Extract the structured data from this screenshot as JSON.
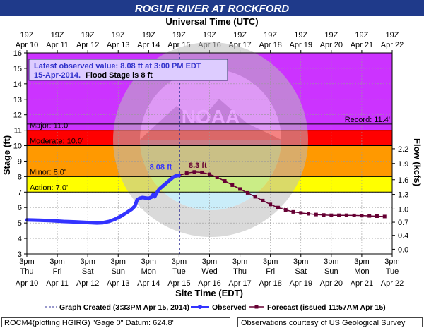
{
  "header": {
    "title": "ROGUE RIVER AT ROCKFORD",
    "utc_label": "Universal Time (UTC)",
    "title_bg": "#1f3a8a"
  },
  "annotation": {
    "line1": "Latest observed value: 8.08 ft at 3:00 PM EDT",
    "line2_date": "15-Apr-2014.",
    "line2_flood": "Flood Stage is 8 ft"
  },
  "chart_data": {
    "type": "line",
    "ylabel": "Stage (ft)",
    "y2label": "Flow (kcfs)",
    "xlabel": "Site Time (EDT)",
    "ylim": [
      3,
      16
    ],
    "xlim_days": [
      0,
      12
    ],
    "y_ticks": [
      3,
      4,
      5,
      6,
      7,
      8,
      9,
      10,
      11,
      12,
      13,
      14,
      15,
      16
    ],
    "y2_ticks": [
      {
        "stage": 3.3,
        "label": "0.0"
      },
      {
        "stage": 4.2,
        "label": "0.4"
      },
      {
        "stage": 5.05,
        "label": "0.7"
      },
      {
        "stage": 5.9,
        "label": "1.0"
      },
      {
        "stage": 6.85,
        "label": "1.3"
      },
      {
        "stage": 7.8,
        "label": "1.6"
      },
      {
        "stage": 8.85,
        "label": "1.9"
      },
      {
        "stage": 9.8,
        "label": "2.2"
      }
    ],
    "top_ticks": [
      {
        "hour": "19Z",
        "date": "Apr 10"
      },
      {
        "hour": "19Z",
        "date": "Apr 11"
      },
      {
        "hour": "19Z",
        "date": "Apr 12"
      },
      {
        "hour": "19Z",
        "date": "Apr 13"
      },
      {
        "hour": "19Z",
        "date": "Apr 14"
      },
      {
        "hour": "19Z",
        "date": "Apr 15"
      },
      {
        "hour": "19Z",
        "date": "Apr 16"
      },
      {
        "hour": "19Z",
        "date": "Apr 17"
      },
      {
        "hour": "19Z",
        "date": "Apr 18"
      },
      {
        "hour": "19Z",
        "date": "Apr 19"
      },
      {
        "hour": "19Z",
        "date": "Apr 20"
      },
      {
        "hour": "19Z",
        "date": "Apr 21"
      },
      {
        "hour": "19Z",
        "date": "Apr 22"
      }
    ],
    "bottom_ticks": [
      {
        "time": "3pm",
        "day": "Thu",
        "date": "Apr 10"
      },
      {
        "time": "3pm",
        "day": "Fri",
        "date": "Apr 11"
      },
      {
        "time": "3pm",
        "day": "Sat",
        "date": "Apr 12"
      },
      {
        "time": "3pm",
        "day": "Sun",
        "date": "Apr 13"
      },
      {
        "time": "3pm",
        "day": "Mon",
        "date": "Apr 14"
      },
      {
        "time": "3pm",
        "day": "Tue",
        "date": "Apr 15"
      },
      {
        "time": "3pm",
        "day": "Wed",
        "date": "Apr 16"
      },
      {
        "time": "3pm",
        "day": "Thu",
        "date": "Apr 17"
      },
      {
        "time": "3pm",
        "day": "Fri",
        "date": "Apr 18"
      },
      {
        "time": "3pm",
        "day": "Sat",
        "date": "Apr 19"
      },
      {
        "time": "3pm",
        "day": "Sun",
        "date": "Apr 20"
      },
      {
        "time": "3pm",
        "day": "Mon",
        "date": "Apr 21"
      },
      {
        "time": "3pm",
        "day": "Tue",
        "date": "Apr 22"
      }
    ],
    "bands": [
      {
        "name": "action",
        "from": 7,
        "to": 8,
        "color": "#ffff00",
        "label": "Action: 7.0'"
      },
      {
        "name": "minor",
        "from": 8,
        "to": 10,
        "color": "#ff9900",
        "label": "Minor: 8.0'"
      },
      {
        "name": "moderate",
        "from": 10,
        "to": 11,
        "color": "#ff0000",
        "label": "Moderate: 10.0'"
      },
      {
        "name": "major",
        "from": 11,
        "to": 16,
        "color": "#cc33ff",
        "label": "Major: 11.0'"
      }
    ],
    "record": {
      "stage": 11.4,
      "label": "Record: 11.4'"
    },
    "created_day": 5.02,
    "observed": {
      "name": "Observed",
      "color": "#3333ff",
      "label": "8.08 ft",
      "points": [
        [
          0.0,
          5.2
        ],
        [
          0.4,
          5.18
        ],
        [
          0.8,
          5.15
        ],
        [
          1.2,
          5.1
        ],
        [
          1.6,
          5.07
        ],
        [
          2.0,
          5.03
        ],
        [
          2.3,
          5.0
        ],
        [
          2.5,
          5.02
        ],
        [
          2.7,
          5.1
        ],
        [
          2.9,
          5.25
        ],
        [
          3.1,
          5.45
        ],
        [
          3.3,
          5.7
        ],
        [
          3.45,
          5.9
        ],
        [
          3.55,
          6.1
        ],
        [
          3.62,
          6.5
        ],
        [
          3.7,
          6.6
        ],
        [
          3.8,
          6.65
        ],
        [
          3.9,
          6.62
        ],
        [
          4.0,
          6.6
        ],
        [
          4.1,
          6.68
        ],
        [
          4.15,
          6.85
        ],
        [
          4.2,
          6.7
        ],
        [
          4.25,
          6.9
        ],
        [
          4.35,
          7.2
        ],
        [
          4.5,
          7.45
        ],
        [
          4.65,
          7.7
        ],
        [
          4.8,
          7.95
        ],
        [
          4.9,
          8.05
        ],
        [
          5.0,
          8.08
        ]
      ]
    },
    "forecast": {
      "name": "Forecast",
      "color": "#660033",
      "label": "8.3 ft",
      "points": [
        [
          5.0,
          8.08
        ],
        [
          5.25,
          8.22
        ],
        [
          5.5,
          8.3
        ],
        [
          5.75,
          8.27
        ],
        [
          6.0,
          8.15
        ],
        [
          6.25,
          7.95
        ],
        [
          6.5,
          7.72
        ],
        [
          6.75,
          7.45
        ],
        [
          7.0,
          7.2
        ],
        [
          7.25,
          6.95
        ],
        [
          7.5,
          6.7
        ],
        [
          7.75,
          6.45
        ],
        [
          8.0,
          6.2
        ],
        [
          8.25,
          6.0
        ],
        [
          8.5,
          5.85
        ],
        [
          8.75,
          5.72
        ],
        [
          9.0,
          5.65
        ],
        [
          9.25,
          5.6
        ],
        [
          9.5,
          5.55
        ],
        [
          9.75,
          5.52
        ],
        [
          10.0,
          5.5
        ],
        [
          10.25,
          5.5
        ],
        [
          10.5,
          5.5
        ],
        [
          10.75,
          5.49
        ],
        [
          11.0,
          5.48
        ],
        [
          11.25,
          5.46
        ],
        [
          11.5,
          5.44
        ],
        [
          11.75,
          5.42
        ]
      ]
    },
    "legend": {
      "created": "Graph Created (3:33PM Apr 15, 2014)",
      "observed": "Observed",
      "forecast": "Forecast (issued 11:57AM Apr 15)"
    }
  },
  "footer": {
    "left": "ROCM4(plotting HGIRG) \"Gage 0\" Datum: 624.8'",
    "right": "Observations courtesy of US Geological Survey"
  }
}
